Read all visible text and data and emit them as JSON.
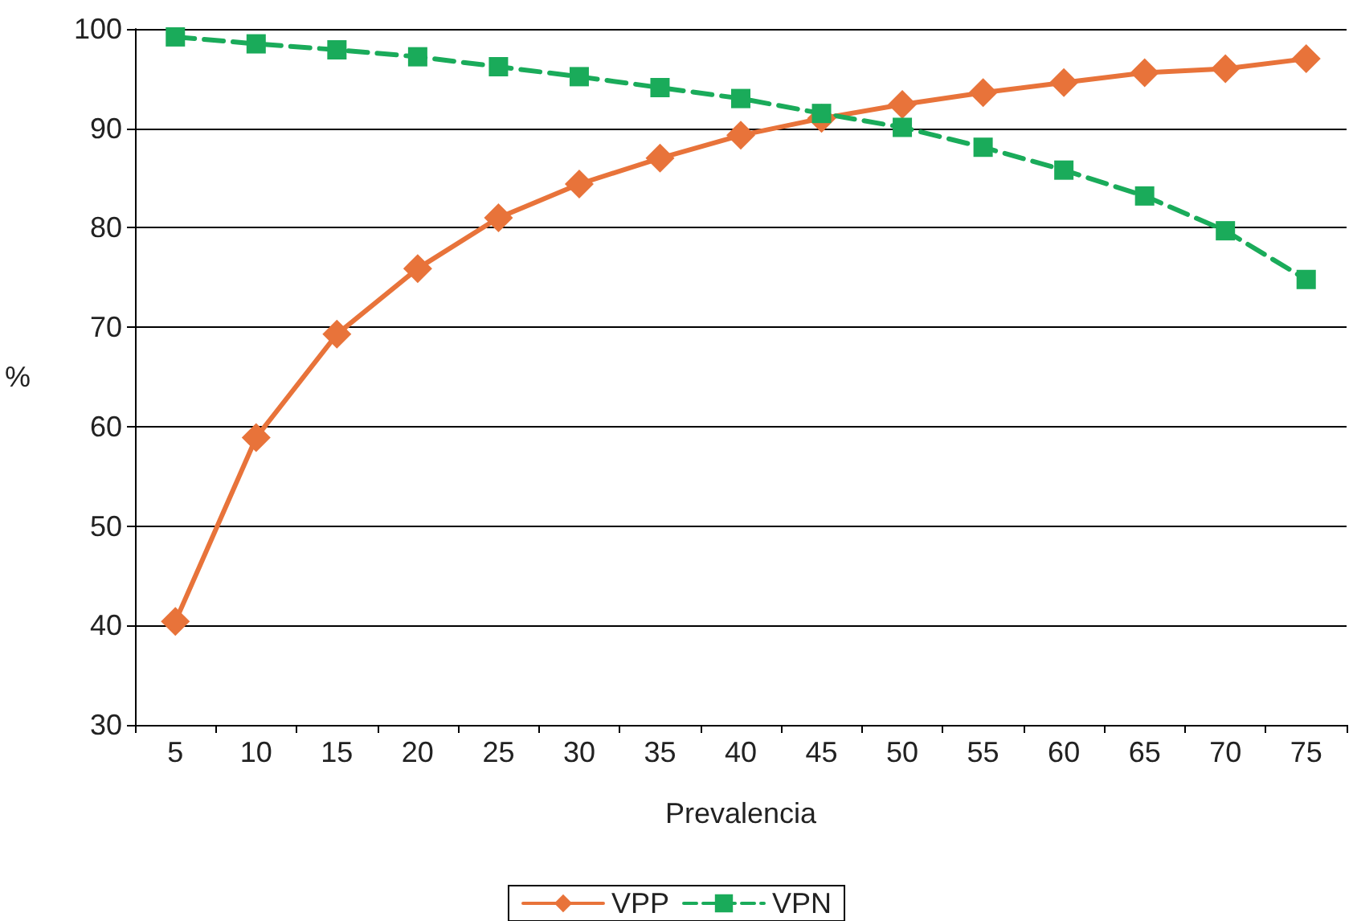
{
  "chart_data": {
    "type": "line",
    "xlabel": "Prevalencia",
    "ylabel": "%",
    "categories": [
      "5",
      "10",
      "15",
      "20",
      "25",
      "30",
      "35",
      "40",
      "45",
      "50",
      "55",
      "60",
      "65",
      "70",
      "75"
    ],
    "series": [
      {
        "name": "VPP",
        "color": "#e8733a",
        "marker": "diamond",
        "line_style": "solid",
        "values": [
          40.4,
          58.9,
          69.3,
          75.9,
          81,
          84.4,
          87,
          89.3,
          91,
          92.4,
          93.6,
          94.6,
          95.6,
          96,
          97
        ]
      },
      {
        "name": "VPN",
        "color": "#1aab5a",
        "marker": "square",
        "line_style": "dashed",
        "values": [
          99.2,
          98.5,
          97.9,
          97.2,
          96.2,
          95.2,
          94.1,
          93,
          91.5,
          90.1,
          88.1,
          85.8,
          83.2,
          79.7,
          74.8
        ]
      }
    ],
    "ylim": [
      30,
      100
    ],
    "yticks": [
      30,
      40,
      50,
      60,
      70,
      80,
      90,
      100
    ],
    "grid": "y",
    "legend": "bottom"
  }
}
